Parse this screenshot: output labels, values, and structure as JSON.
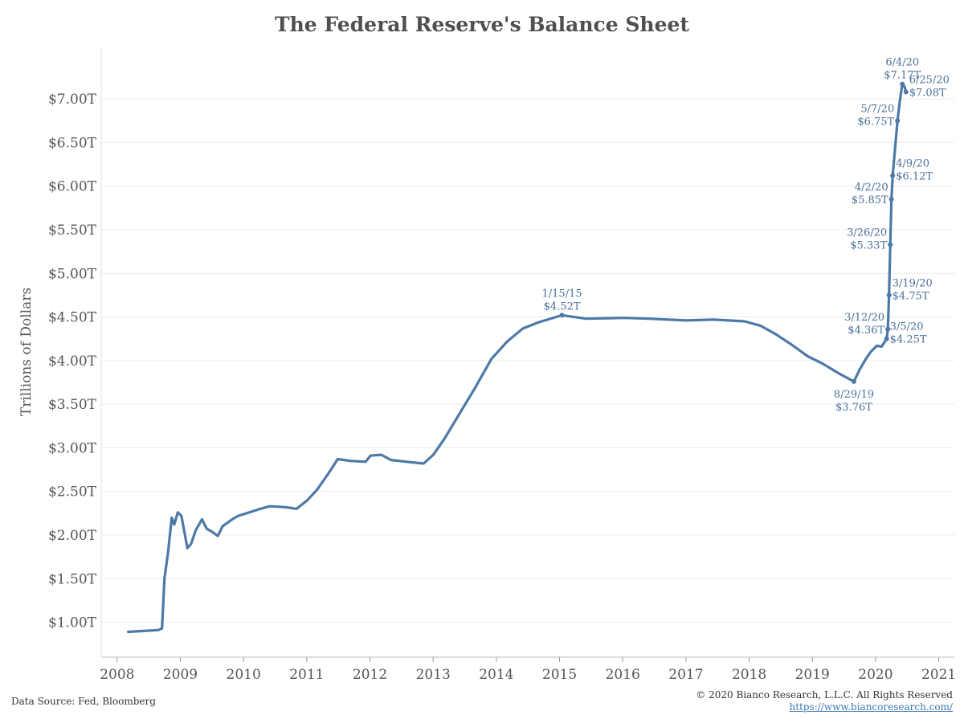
{
  "chart_data": {
    "type": "line",
    "title": "The Federal Reserve's Balance Sheet",
    "ylabel": "Trillions of Dollars",
    "xlabel": "",
    "ylim": [
      0.6,
      7.6
    ],
    "xlim": [
      "2007-10-01",
      "2021-04-01"
    ],
    "x_ticks": [
      "2008",
      "2009",
      "2010",
      "2011",
      "2012",
      "2013",
      "2014",
      "2015",
      "2016",
      "2017",
      "2018",
      "2019",
      "2020",
      "2021"
    ],
    "y_ticks": [
      {
        "value": 1.0,
        "label": "$1.00T"
      },
      {
        "value": 1.5,
        "label": "$1.50T"
      },
      {
        "value": 2.0,
        "label": "$2.00T"
      },
      {
        "value": 2.5,
        "label": "$2.50T"
      },
      {
        "value": 3.0,
        "label": "$3.00T"
      },
      {
        "value": 3.5,
        "label": "$3.50T"
      },
      {
        "value": 4.0,
        "label": "$4.00T"
      },
      {
        "value": 4.5,
        "label": "$4.50T"
      },
      {
        "value": 5.0,
        "label": "$5.00T"
      },
      {
        "value": 5.5,
        "label": "$5.50T"
      },
      {
        "value": 6.0,
        "label": "$6.00T"
      },
      {
        "value": 6.5,
        "label": "$6.50T"
      },
      {
        "value": 7.0,
        "label": "$7.00T"
      }
    ],
    "grid": "horizontal",
    "line_color": "#4e79a7",
    "series": [
      {
        "values": [
          [
            "2008-03-05",
            0.89
          ],
          [
            "2008-06-04",
            0.9
          ],
          [
            "2008-08-27",
            0.91
          ],
          [
            "2008-09-17",
            0.93
          ],
          [
            "2008-10-01",
            1.5
          ],
          [
            "2008-10-22",
            1.8
          ],
          [
            "2008-11-12",
            2.2
          ],
          [
            "2008-11-26",
            2.12
          ],
          [
            "2008-12-17",
            2.26
          ],
          [
            "2009-01-07",
            2.22
          ],
          [
            "2009-02-11",
            1.85
          ],
          [
            "2009-03-04",
            1.9
          ],
          [
            "2009-04-01",
            2.06
          ],
          [
            "2009-05-06",
            2.18
          ],
          [
            "2009-06-03",
            2.07
          ],
          [
            "2009-07-01",
            2.04
          ],
          [
            "2009-08-05",
            1.99
          ],
          [
            "2009-09-02",
            2.1
          ],
          [
            "2009-10-07",
            2.15
          ],
          [
            "2009-11-04",
            2.19
          ],
          [
            "2009-12-02",
            2.22
          ],
          [
            "2010-02-03",
            2.26
          ],
          [
            "2010-04-07",
            2.3
          ],
          [
            "2010-06-02",
            2.33
          ],
          [
            "2010-09-01",
            2.32
          ],
          [
            "2010-11-03",
            2.3
          ],
          [
            "2011-01-05",
            2.4
          ],
          [
            "2011-03-02",
            2.52
          ],
          [
            "2011-05-04",
            2.7
          ],
          [
            "2011-06-29",
            2.87
          ],
          [
            "2011-09-07",
            2.85
          ],
          [
            "2011-12-07",
            2.84
          ],
          [
            "2012-01-04",
            2.91
          ],
          [
            "2012-03-07",
            2.92
          ],
          [
            "2012-05-02",
            2.86
          ],
          [
            "2012-08-01",
            2.84
          ],
          [
            "2012-11-07",
            2.82
          ],
          [
            "2013-01-02",
            2.92
          ],
          [
            "2013-03-06",
            3.1
          ],
          [
            "2013-06-05",
            3.4
          ],
          [
            "2013-09-04",
            3.7
          ],
          [
            "2013-12-04",
            4.02
          ],
          [
            "2014-03-05",
            4.22
          ],
          [
            "2014-06-04",
            4.37
          ],
          [
            "2014-09-03",
            4.44
          ],
          [
            "2015-01-15",
            4.52
          ],
          [
            "2015-06-03",
            4.48
          ],
          [
            "2016-01-06",
            4.49
          ],
          [
            "2016-06-01",
            4.48
          ],
          [
            "2017-01-04",
            4.46
          ],
          [
            "2017-06-07",
            4.47
          ],
          [
            "2017-12-06",
            4.45
          ],
          [
            "2018-03-07",
            4.4
          ],
          [
            "2018-06-06",
            4.3
          ],
          [
            "2018-09-05",
            4.18
          ],
          [
            "2018-12-05",
            4.05
          ],
          [
            "2019-03-06",
            3.96
          ],
          [
            "2019-06-05",
            3.85
          ],
          [
            "2019-08-29",
            3.76
          ],
          [
            "2019-10-02",
            3.9
          ],
          [
            "2019-11-06",
            4.02
          ],
          [
            "2019-12-04",
            4.1
          ],
          [
            "2020-01-08",
            4.17
          ],
          [
            "2020-02-05",
            4.16
          ],
          [
            "2020-03-05",
            4.25
          ],
          [
            "2020-03-12",
            4.36
          ],
          [
            "2020-03-19",
            4.75
          ],
          [
            "2020-03-26",
            5.33
          ],
          [
            "2020-04-02",
            5.85
          ],
          [
            "2020-04-09",
            6.12
          ],
          [
            "2020-05-07",
            6.75
          ],
          [
            "2020-05-21",
            6.98
          ],
          [
            "2020-06-04",
            7.17
          ],
          [
            "2020-06-11",
            7.16
          ],
          [
            "2020-06-18",
            7.13
          ],
          [
            "2020-06-25",
            7.08
          ]
        ]
      }
    ],
    "annotations": [
      {
        "date": "2015-01-15",
        "value": 4.52,
        "date_label": "1/15/15",
        "value_label": "$4.52T",
        "placement": "above"
      },
      {
        "date": "2019-08-29",
        "value": 3.76,
        "date_label": "8/29/19",
        "value_label": "$3.76T",
        "placement": "below"
      },
      {
        "date": "2020-03-05",
        "value": 4.25,
        "date_label": "3/5/20",
        "value_label": "$4.25T",
        "placement": "right"
      },
      {
        "date": "2020-03-12",
        "value": 4.36,
        "date_label": "3/12/20",
        "value_label": "$4.36T",
        "placement": "left"
      },
      {
        "date": "2020-03-19",
        "value": 4.75,
        "date_label": "3/19/20",
        "value_label": "$4.75T",
        "placement": "right"
      },
      {
        "date": "2020-03-26",
        "value": 5.33,
        "date_label": "3/26/20",
        "value_label": "$5.33T",
        "placement": "left"
      },
      {
        "date": "2020-04-02",
        "value": 5.85,
        "date_label": "4/2/20",
        "value_label": "$5.85T",
        "placement": "left"
      },
      {
        "date": "2020-04-09",
        "value": 6.12,
        "date_label": "4/9/20",
        "value_label": "$6.12T",
        "placement": "right"
      },
      {
        "date": "2020-05-07",
        "value": 6.75,
        "date_label": "5/7/20",
        "value_label": "$6.75T",
        "placement": "left"
      },
      {
        "date": "2020-06-04",
        "value": 7.17,
        "date_label": "6/4/20",
        "value_label": "$7.17T",
        "placement": "above"
      },
      {
        "date": "2020-06-25",
        "value": 7.08,
        "date_label": "6/25/20",
        "value_label": "$7.08T",
        "placement": "right"
      }
    ]
  },
  "footer": {
    "source": "Data Source: Fed, Bloomberg",
    "copyright": "© 2020 Bianco Research, L.L.C. All Rights Reserved",
    "url": "https://www.biancoresearch.com/"
  }
}
